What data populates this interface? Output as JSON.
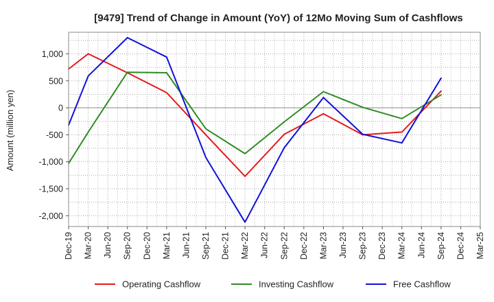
{
  "chart_data": {
    "type": "line",
    "title": "[9479]  Trend of Change in Amount (YoY) of 12Mo Moving Sum of Cashflows",
    "xlabel": "",
    "ylabel": "Amount (million yen)",
    "ylim": [
      -2200,
      1400
    ],
    "yticks": [
      1000,
      500,
      0,
      -500,
      -1000,
      -1500,
      -2000
    ],
    "ytick_labels": [
      "1,000",
      "500",
      "0",
      "-500",
      "-1,000",
      "-1,500",
      "-2,000"
    ],
    "categories": [
      "Dec-19",
      "Mar-20",
      "Jun-20",
      "Sep-20",
      "Dec-20",
      "Mar-21",
      "Jun-21",
      "Sep-21",
      "Dec-21",
      "Mar-22",
      "Jun-22",
      "Sep-22",
      "Dec-22",
      "Mar-23",
      "Jun-23",
      "Sep-23",
      "Dec-23",
      "Mar-24",
      "Jun-24",
      "Sep-24",
      "Dec-24",
      "Mar-25"
    ],
    "grid": true,
    "legend_position": "bottom",
    "series": [
      {
        "name": "Operating Cashflow",
        "color": "#e31a1c",
        "points": [
          [
            0,
            720
          ],
          [
            1,
            1000
          ],
          [
            3,
            650
          ],
          [
            5,
            280
          ],
          [
            7,
            -500
          ],
          [
            9,
            -1270
          ],
          [
            11,
            -490
          ],
          [
            13,
            -110
          ],
          [
            15,
            -500
          ],
          [
            17,
            -450
          ],
          [
            19,
            310
          ]
        ]
      },
      {
        "name": "Investing Cashflow",
        "color": "#2e8b22",
        "points": [
          [
            0,
            -1030
          ],
          [
            1,
            -450
          ],
          [
            3,
            660
          ],
          [
            5,
            650
          ],
          [
            7,
            -390
          ],
          [
            9,
            -850
          ],
          [
            11,
            -260
          ],
          [
            13,
            300
          ],
          [
            15,
            10
          ],
          [
            17,
            -200
          ],
          [
            19,
            240
          ]
        ]
      },
      {
        "name": "Free Cashflow",
        "color": "#1010d8",
        "points": [
          [
            0,
            -320
          ],
          [
            1,
            590
          ],
          [
            3,
            1300
          ],
          [
            5,
            940
          ],
          [
            7,
            -920
          ],
          [
            9,
            -2120
          ],
          [
            11,
            -740
          ],
          [
            13,
            190
          ],
          [
            15,
            -490
          ],
          [
            17,
            -650
          ],
          [
            19,
            550
          ]
        ]
      }
    ]
  }
}
